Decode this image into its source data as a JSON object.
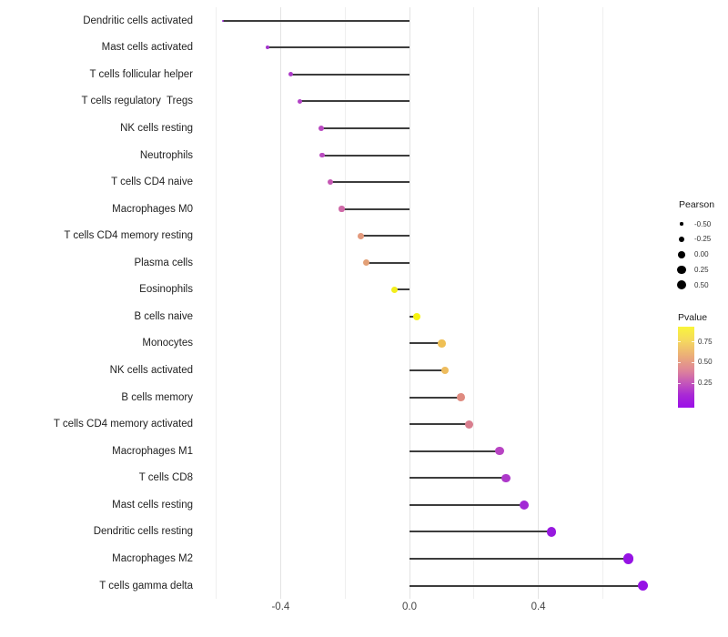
{
  "chart_data": {
    "type": "lollipop",
    "title": "",
    "xlabel": "",
    "ylabel": "",
    "x_axis": {
      "major_ticks": [
        -0.4,
        0.0,
        0.4
      ],
      "major_tick_labels": [
        "-0.4",
        "0.0",
        "0.4"
      ],
      "minor_ticks": [
        -0.6,
        -0.2,
        0.2,
        0.6
      ],
      "xlim": [
        -0.65,
        0.79
      ],
      "grid": "vertical-only"
    },
    "points": [
      {
        "label": "Dendritic cells activated",
        "pearson": -0.58,
        "pvalue_approx": 0.1,
        "color": "#9c2ed2"
      },
      {
        "label": "Mast cells activated",
        "pearson": -0.44,
        "pvalue_approx": 0.15,
        "color": "#a433cd"
      },
      {
        "label": "T cells follicular helper",
        "pearson": -0.37,
        "pvalue_approx": 0.19,
        "color": "#ad3cc9"
      },
      {
        "label": "T cells regulatory  Tregs",
        "pearson": -0.34,
        "pvalue_approx": 0.21,
        "color": "#b243c6"
      },
      {
        "label": "NK cells resting",
        "pearson": -0.275,
        "pvalue_approx": 0.24,
        "color": "#b94ac1"
      },
      {
        "label": "Neutrophils",
        "pearson": -0.27,
        "pvalue_approx": 0.24,
        "color": "#ba4bc0"
      },
      {
        "label": "T cells CD4 naive",
        "pearson": -0.245,
        "pvalue_approx": 0.28,
        "color": "#c558b4"
      },
      {
        "label": "Macrophages M0",
        "pearson": -0.21,
        "pvalue_approx": 0.33,
        "color": "#cf6aa8"
      },
      {
        "label": "T cells CD4 memory resting",
        "pearson": -0.15,
        "pvalue_approx": 0.5,
        "color": "#e39a7d"
      },
      {
        "label": "Plasma cells",
        "pearson": -0.135,
        "pvalue_approx": 0.53,
        "color": "#e3a077"
      },
      {
        "label": "Eosinophils",
        "pearson": -0.047,
        "pvalue_approx": 0.88,
        "color": "#f3ee1c"
      },
      {
        "label": "B cells naive",
        "pearson": 0.022,
        "pvalue_approx": 0.92,
        "color": "#f7f310"
      },
      {
        "label": "Monocytes",
        "pearson": 0.1,
        "pvalue_approx": 0.67,
        "color": "#efc055"
      },
      {
        "label": "NK cells activated",
        "pearson": 0.11,
        "pvalue_approx": 0.65,
        "color": "#eebc5d"
      },
      {
        "label": "B cells memory",
        "pearson": 0.16,
        "pvalue_approx": 0.45,
        "color": "#df8b80"
      },
      {
        "label": "T cells CD4 memory activated",
        "pearson": 0.185,
        "pvalue_approx": 0.4,
        "color": "#d87e8e"
      },
      {
        "label": "Macrophages M1",
        "pearson": 0.28,
        "pvalue_approx": 0.23,
        "color": "#b844c3"
      },
      {
        "label": "T cells CD8",
        "pearson": 0.3,
        "pvalue_approx": 0.18,
        "color": "#ad38ca"
      },
      {
        "label": "Mast cells resting",
        "pearson": 0.355,
        "pvalue_approx": 0.13,
        "color": "#a229d5"
      },
      {
        "label": "Dendritic cells resting",
        "pearson": 0.44,
        "pvalue_approx": 0.06,
        "color": "#9719df"
      },
      {
        "label": "Macrophages M2",
        "pearson": 0.68,
        "pvalue_approx": 0.04,
        "color": "#9613e4"
      },
      {
        "label": "T cells gamma delta",
        "pearson": 0.725,
        "pvalue_approx": 0.04,
        "color": "#9612e5"
      }
    ],
    "legends": {
      "size": {
        "title": "Pearson",
        "position": "right",
        "entries": [
          {
            "label": "-0.50",
            "value": -0.5
          },
          {
            "label": "-0.25",
            "value": -0.25
          },
          {
            "label": "0.00",
            "value": 0.0
          },
          {
            "label": "0.25",
            "value": 0.25
          },
          {
            "label": "0.50",
            "value": 0.5
          }
        ],
        "dot_color": "#000000"
      },
      "color": {
        "title": "Pvalue",
        "position": "right",
        "tick_labels": [
          "0.75",
          "0.50",
          "0.25"
        ],
        "tick_values": [
          0.75,
          0.5,
          0.25
        ],
        "bar_range": [
          0.92,
          0.0
        ],
        "gradient_stops": [
          {
            "color": "#f9f53b",
            "pos": 0
          },
          {
            "color": "#f5d95e",
            "pos": 17
          },
          {
            "color": "#eaa97b",
            "pos": 38
          },
          {
            "color": "#dd829b",
            "pos": 55
          },
          {
            "color": "#c355bb",
            "pos": 70
          },
          {
            "color": "#a827d6",
            "pos": 85
          },
          {
            "color": "#9b0fe8",
            "pos": 100
          }
        ]
      }
    },
    "stem_color": "#3d3d3d"
  }
}
